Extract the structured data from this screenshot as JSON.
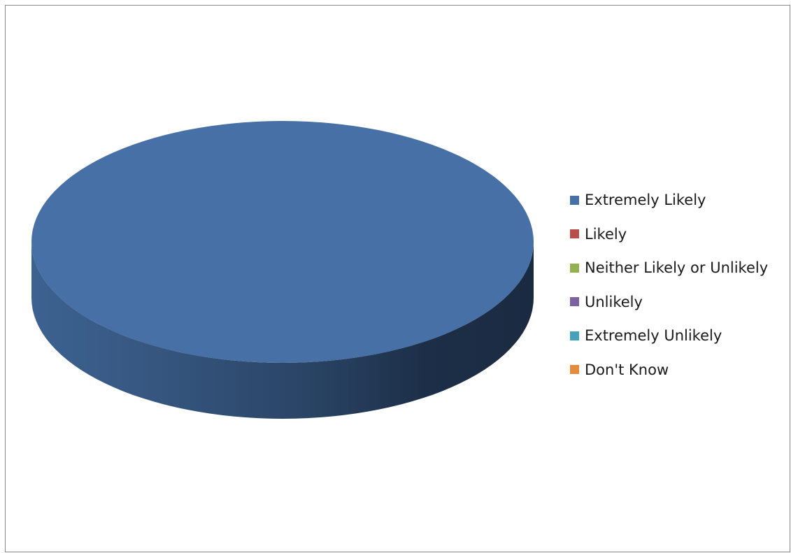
{
  "chart_data": {
    "type": "pie",
    "title": "",
    "style": "3d",
    "legend_position": "right",
    "categories": [
      "Extremely Likely",
      "Likely",
      "Neither Likely or Unlikely",
      "Unlikely",
      "Extremely Unlikely",
      "Don't Know"
    ],
    "values": [
      100,
      0,
      0,
      0,
      0,
      0
    ],
    "colors": [
      "#4670A6",
      "#B84D4A",
      "#93B152",
      "#7C63A0",
      "#45A2B9",
      "#E58C3C"
    ]
  }
}
